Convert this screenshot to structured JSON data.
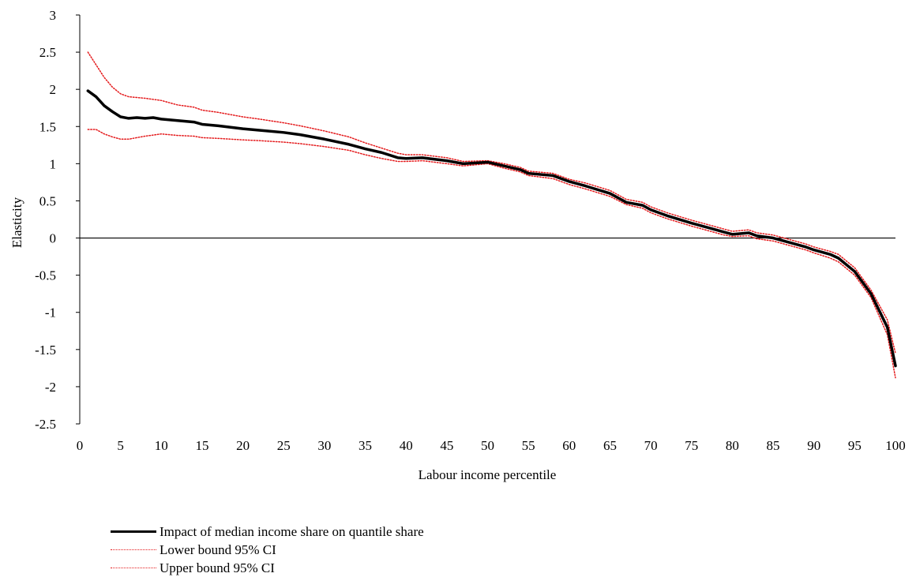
{
  "chart_data": {
    "type": "line",
    "title": "",
    "xlabel": "Labour income percentile",
    "ylabel": "Elasticity",
    "xlim": [
      0,
      100
    ],
    "ylim": [
      -2.5,
      3
    ],
    "x_ticks": [
      "0",
      "5",
      "10",
      "15",
      "20",
      "25",
      "30",
      "35",
      "40",
      "45",
      "50",
      "55",
      "60",
      "65",
      "70",
      "75",
      "80",
      "85",
      "90",
      "95",
      "100"
    ],
    "y_ticks": [
      "3",
      "2.5",
      "2",
      "1.5",
      "1",
      "0.5",
      "0",
      "-0.5",
      "-1",
      "-1.5",
      "-2",
      "-2.5"
    ],
    "grid": false,
    "legend_position": "bottom",
    "series": [
      {
        "name": "Impact of median income share on quantile share",
        "color": "#000000",
        "style": "solid",
        "points": [
          [
            1,
            1.98
          ],
          [
            2,
            1.9
          ],
          [
            3,
            1.78
          ],
          [
            4,
            1.7
          ],
          [
            5,
            1.63
          ],
          [
            6,
            1.61
          ],
          [
            7,
            1.62
          ],
          [
            8,
            1.61
          ],
          [
            9,
            1.62
          ],
          [
            10,
            1.6
          ],
          [
            12,
            1.58
          ],
          [
            14,
            1.56
          ],
          [
            15,
            1.53
          ],
          [
            17,
            1.51
          ],
          [
            20,
            1.47
          ],
          [
            22,
            1.45
          ],
          [
            25,
            1.42
          ],
          [
            27,
            1.39
          ],
          [
            30,
            1.33
          ],
          [
            33,
            1.26
          ],
          [
            35,
            1.2
          ],
          [
            37,
            1.15
          ],
          [
            39,
            1.08
          ],
          [
            40,
            1.07
          ],
          [
            42,
            1.08
          ],
          [
            45,
            1.04
          ],
          [
            47,
            1.0
          ],
          [
            50,
            1.02
          ],
          [
            52,
            0.97
          ],
          [
            54,
            0.92
          ],
          [
            55,
            0.87
          ],
          [
            58,
            0.84
          ],
          [
            60,
            0.76
          ],
          [
            62,
            0.7
          ],
          [
            65,
            0.6
          ],
          [
            67,
            0.48
          ],
          [
            69,
            0.44
          ],
          [
            70,
            0.38
          ],
          [
            72,
            0.3
          ],
          [
            75,
            0.2
          ],
          [
            77,
            0.14
          ],
          [
            79,
            0.08
          ],
          [
            80,
            0.05
          ],
          [
            82,
            0.07
          ],
          [
            83,
            0.03
          ],
          [
            85,
            0.0
          ],
          [
            87,
            -0.06
          ],
          [
            89,
            -0.12
          ],
          [
            90,
            -0.16
          ],
          [
            92,
            -0.22
          ],
          [
            93,
            -0.27
          ],
          [
            95,
            -0.45
          ],
          [
            97,
            -0.75
          ],
          [
            99,
            -1.2
          ],
          [
            100,
            -1.72
          ]
        ]
      },
      {
        "name": "Lower bound 95% CI",
        "color": "#e41a1c",
        "style": "dotted",
        "points": [
          [
            1,
            1.46
          ],
          [
            2,
            1.46
          ],
          [
            3,
            1.4
          ],
          [
            4,
            1.36
          ],
          [
            5,
            1.33
          ],
          [
            6,
            1.33
          ],
          [
            7,
            1.35
          ],
          [
            8,
            1.37
          ],
          [
            10,
            1.4
          ],
          [
            12,
            1.38
          ],
          [
            14,
            1.37
          ],
          [
            15,
            1.35
          ],
          [
            17,
            1.34
          ],
          [
            20,
            1.32
          ],
          [
            22,
            1.31
          ],
          [
            25,
            1.29
          ],
          [
            27,
            1.27
          ],
          [
            30,
            1.23
          ],
          [
            33,
            1.18
          ],
          [
            35,
            1.12
          ],
          [
            37,
            1.07
          ],
          [
            39,
            1.03
          ],
          [
            40,
            1.03
          ],
          [
            42,
            1.04
          ],
          [
            45,
            1.0
          ],
          [
            47,
            0.97
          ],
          [
            50,
            1.0
          ],
          [
            52,
            0.94
          ],
          [
            54,
            0.89
          ],
          [
            55,
            0.84
          ],
          [
            58,
            0.8
          ],
          [
            60,
            0.72
          ],
          [
            62,
            0.66
          ],
          [
            65,
            0.56
          ],
          [
            67,
            0.45
          ],
          [
            69,
            0.4
          ],
          [
            70,
            0.34
          ],
          [
            72,
            0.26
          ],
          [
            75,
            0.16
          ],
          [
            77,
            0.1
          ],
          [
            79,
            0.04
          ],
          [
            80,
            0.02
          ],
          [
            82,
            0.03
          ],
          [
            83,
            -0.01
          ],
          [
            85,
            -0.04
          ],
          [
            87,
            -0.1
          ],
          [
            89,
            -0.16
          ],
          [
            90,
            -0.2
          ],
          [
            92,
            -0.27
          ],
          [
            93,
            -0.32
          ],
          [
            95,
            -0.5
          ],
          [
            97,
            -0.8
          ],
          [
            99,
            -1.3
          ],
          [
            100,
            -1.88
          ]
        ]
      },
      {
        "name": "Upper bound 95% CI",
        "color": "#e41a1c",
        "style": "dotted",
        "points": [
          [
            1,
            2.5
          ],
          [
            2,
            2.33
          ],
          [
            3,
            2.16
          ],
          [
            4,
            2.03
          ],
          [
            5,
            1.94
          ],
          [
            6,
            1.9
          ],
          [
            8,
            1.88
          ],
          [
            10,
            1.85
          ],
          [
            12,
            1.79
          ],
          [
            14,
            1.76
          ],
          [
            15,
            1.72
          ],
          [
            17,
            1.69
          ],
          [
            20,
            1.63
          ],
          [
            22,
            1.6
          ],
          [
            25,
            1.55
          ],
          [
            27,
            1.51
          ],
          [
            30,
            1.44
          ],
          [
            33,
            1.36
          ],
          [
            35,
            1.28
          ],
          [
            37,
            1.21
          ],
          [
            39,
            1.14
          ],
          [
            40,
            1.12
          ],
          [
            42,
            1.12
          ],
          [
            45,
            1.08
          ],
          [
            47,
            1.03
          ],
          [
            50,
            1.04
          ],
          [
            52,
            1.0
          ],
          [
            54,
            0.95
          ],
          [
            55,
            0.9
          ],
          [
            58,
            0.87
          ],
          [
            60,
            0.79
          ],
          [
            62,
            0.74
          ],
          [
            65,
            0.64
          ],
          [
            67,
            0.52
          ],
          [
            69,
            0.48
          ],
          [
            70,
            0.42
          ],
          [
            72,
            0.34
          ],
          [
            75,
            0.24
          ],
          [
            77,
            0.18
          ],
          [
            79,
            0.12
          ],
          [
            80,
            0.09
          ],
          [
            82,
            0.11
          ],
          [
            83,
            0.07
          ],
          [
            85,
            0.04
          ],
          [
            87,
            -0.02
          ],
          [
            89,
            -0.08
          ],
          [
            90,
            -0.12
          ],
          [
            92,
            -0.18
          ],
          [
            93,
            -0.22
          ],
          [
            95,
            -0.4
          ],
          [
            97,
            -0.7
          ],
          [
            99,
            -1.1
          ],
          [
            100,
            -1.55
          ]
        ]
      }
    ]
  }
}
